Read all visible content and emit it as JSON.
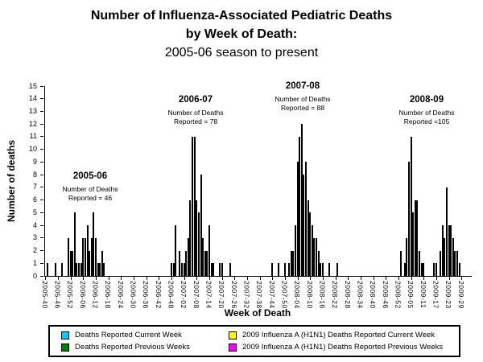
{
  "title": {
    "line1": "Number of Influenza-Associated Pediatric Deaths",
    "line2": "by Week of Death:",
    "line3": "2005-06 season to present"
  },
  "y_axis": {
    "label": "Number of deaths",
    "min": 0,
    "max": 15,
    "tick_step": 1
  },
  "x_axis": {
    "label": "Week of Death",
    "tick_labels": [
      "2005-40",
      "2005-46",
      "2005-52",
      "2006-06",
      "2006-12",
      "2006-18",
      "2006-24",
      "2006-30",
      "2006-36",
      "2006-42",
      "2006-48",
      "2007-02",
      "2007-08",
      "2007-14",
      "2007-20",
      "2007-26",
      "2007-32",
      "2007-38",
      "2007-44",
      "2007-50",
      "2008-04",
      "2008-10",
      "2008-16",
      "2008-22",
      "2008-28",
      "2008-34",
      "2008-40",
      "2008-46",
      "2008-52",
      "2009-05",
      "2009-11",
      "2009-17",
      "2009-23",
      "2009-29"
    ]
  },
  "annotations": [
    {
      "season": "2005-06",
      "line1": "Number of Deaths",
      "line2": "Reported = 46"
    },
    {
      "season": "2006-07",
      "line1": "Number of Deaths",
      "line2": "Reported = 78"
    },
    {
      "season": "2007-08",
      "line1": "Number of Deaths",
      "line2": "Reported = 88"
    },
    {
      "season": "2008-09",
      "line1": "Number of Deaths",
      "line2": "Reported =105"
    }
  ],
  "legend": {
    "items": [
      {
        "label": "Deaths Reported Current Week",
        "color_name": "cyan"
      },
      {
        "label": "Deaths Reported Previous Weeks",
        "color_name": "green"
      },
      {
        "label": "2009 Influenza A (H1N1) Deaths Reported Current Week",
        "color_name": "yellow"
      },
      {
        "label": "2009 Influenza A (H1N1) Deaths Reported Previous Weeks",
        "color_name": "magenta"
      }
    ]
  },
  "colors": {
    "cyan": "#00CCFF",
    "green": "#008000",
    "yellow": "#FFFF00",
    "magenta": "#FF00FF"
  },
  "chart_data": {
    "type": "bar",
    "title": "Number of Influenza-Associated Pediatric Deaths by Week of Death: 2005-06 season to present",
    "xlabel": "Week of Death",
    "ylabel": "Number of deaths",
    "ylim": [
      0,
      15
    ],
    "grid": false,
    "legend_position": "bottom",
    "x_start_week": "2005-40",
    "weeks_total": 203,
    "tick_every": 6,
    "year_weeks": {
      "2005": 52,
      "2006": 52,
      "2007": 52,
      "2008": 53,
      "2009": 33
    },
    "stack_order": [
      "green",
      "magenta",
      "cyan",
      "yellow"
    ],
    "bars": [
      {
        "week": "2005-41",
        "green": 1
      },
      {
        "week": "2005-45",
        "green": 1
      },
      {
        "week": "2005-48",
        "green": 1
      },
      {
        "week": "2005-51",
        "green": 3
      },
      {
        "week": "2005-52",
        "green": 2
      },
      {
        "week": "2006-01",
        "green": 2
      },
      {
        "week": "2006-02",
        "green": 5
      },
      {
        "week": "2006-03",
        "green": 1
      },
      {
        "week": "2006-04",
        "green": 1
      },
      {
        "week": "2006-05",
        "green": 1
      },
      {
        "week": "2006-06",
        "green": 3
      },
      {
        "week": "2006-07",
        "green": 3
      },
      {
        "week": "2006-08",
        "green": 4
      },
      {
        "week": "2006-09",
        "green": 2
      },
      {
        "week": "2006-10",
        "green": 3
      },
      {
        "week": "2006-11",
        "green": 5
      },
      {
        "week": "2006-12",
        "green": 3
      },
      {
        "week": "2006-13",
        "green": 1
      },
      {
        "week": "2006-14",
        "green": 1
      },
      {
        "week": "2006-15",
        "green": 2
      },
      {
        "week": "2006-16",
        "green": 1
      },
      {
        "week": "2006-48",
        "green": 1
      },
      {
        "week": "2006-49",
        "green": 1
      },
      {
        "week": "2006-50",
        "green": 4
      },
      {
        "week": "2006-52",
        "green": 2
      },
      {
        "week": "2007-01",
        "green": 1
      },
      {
        "week": "2007-02",
        "green": 1
      },
      {
        "week": "2007-03",
        "green": 2
      },
      {
        "week": "2007-04",
        "green": 3
      },
      {
        "week": "2007-05",
        "green": 6
      },
      {
        "week": "2007-06",
        "green": 11
      },
      {
        "week": "2007-07",
        "green": 11
      },
      {
        "week": "2007-08",
        "green": 6
      },
      {
        "week": "2007-09",
        "green": 5
      },
      {
        "week": "2007-10",
        "green": 8
      },
      {
        "week": "2007-11",
        "green": 3
      },
      {
        "week": "2007-12",
        "green": 2
      },
      {
        "week": "2007-13",
        "green": 2
      },
      {
        "week": "2007-14",
        "green": 4
      },
      {
        "week": "2007-15",
        "green": 1
      },
      {
        "week": "2007-16",
        "green": 1
      },
      {
        "week": "2007-19",
        "green": 1
      },
      {
        "week": "2007-20",
        "green": 1
      },
      {
        "week": "2007-24",
        "green": 1
      },
      {
        "week": "2007-44",
        "green": 1
      },
      {
        "week": "2007-47",
        "green": 1
      },
      {
        "week": "2007-50",
        "green": 1
      },
      {
        "week": "2007-52",
        "green": 1
      },
      {
        "week": "2008-01",
        "green": 2
      },
      {
        "week": "2008-02",
        "green": 2
      },
      {
        "week": "2008-03",
        "green": 4
      },
      {
        "week": "2008-04",
        "green": 9
      },
      {
        "week": "2008-05",
        "green": 11
      },
      {
        "week": "2008-06",
        "green": 12
      },
      {
        "week": "2008-07",
        "green": 8
      },
      {
        "week": "2008-08",
        "green": 9
      },
      {
        "week": "2008-09",
        "green": 6
      },
      {
        "week": "2008-10",
        "green": 5
      },
      {
        "week": "2008-11",
        "green": 4
      },
      {
        "week": "2008-12",
        "green": 3
      },
      {
        "week": "2008-13",
        "green": 3
      },
      {
        "week": "2008-14",
        "green": 2
      },
      {
        "week": "2008-15",
        "green": 1
      },
      {
        "week": "2008-16",
        "green": 1
      },
      {
        "week": "2008-19",
        "green": 1
      },
      {
        "week": "2008-23",
        "green": 1
      },
      {
        "week": "2008-53",
        "green": 2
      },
      {
        "week": "2009-02",
        "green": 1
      },
      {
        "week": "2009-03",
        "green": 3
      },
      {
        "week": "2009-04",
        "green": 9
      },
      {
        "week": "2009-05",
        "green": 11
      },
      {
        "week": "2009-06",
        "green": 5
      },
      {
        "week": "2009-07",
        "green": 6
      },
      {
        "week": "2009-08",
        "green": 6
      },
      {
        "week": "2009-09",
        "green": 2
      },
      {
        "week": "2009-10",
        "green": 1
      },
      {
        "week": "2009-11",
        "green": 1
      },
      {
        "week": "2009-16",
        "green": 1
      },
      {
        "week": "2009-17",
        "green": 1
      },
      {
        "week": "2009-19",
        "magenta": 2
      },
      {
        "week": "2009-20",
        "magenta": 4
      },
      {
        "week": "2009-21",
        "magenta": 3
      },
      {
        "week": "2009-22",
        "magenta": 7
      },
      {
        "week": "2009-23",
        "magenta": 4
      },
      {
        "week": "2009-24",
        "green": 1,
        "yellow": 3
      },
      {
        "week": "2009-25",
        "magenta": 3
      },
      {
        "week": "2009-26",
        "magenta": 2
      },
      {
        "week": "2009-27",
        "magenta": 1,
        "yellow": 1
      },
      {
        "week": "2009-28",
        "magenta": 1
      }
    ]
  }
}
